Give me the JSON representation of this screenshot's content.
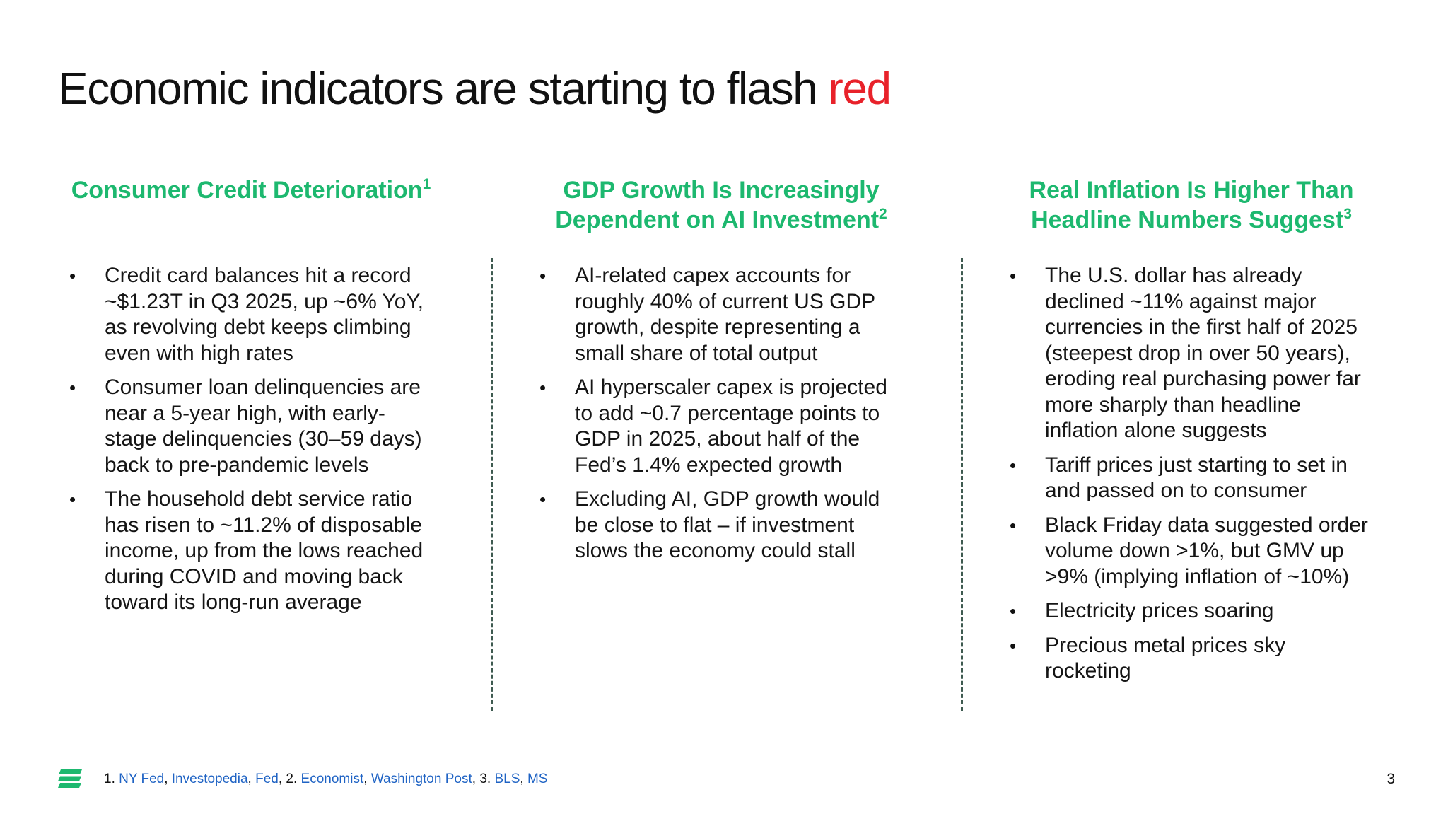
{
  "title": {
    "main": "Economic indicators are starting to flash ",
    "accent": "red"
  },
  "columns": [
    {
      "heading": "Consumer Credit Deterioration",
      "footnote": "1",
      "bullets": [
        "Credit card balances hit a record ~$1.23T in Q3 2025, up ~6% YoY, as revolving debt keeps climbing even with high rates",
        "Consumer loan delinquencies are near a 5-year high, with early-stage delinquencies (30–59 days) back to pre-pandemic levels",
        "The household debt service ratio has risen to ~11.2% of disposable income, up from the lows reached during COVID and moving back toward its long-run average"
      ]
    },
    {
      "heading": "GDP Growth Is Increasingly Dependent on AI Investment",
      "footnote": "2",
      "bullets": [
        "AI-related capex accounts for roughly 40% of current US GDP growth, despite representing a small share of total output",
        "AI hyperscaler capex is projected to add ~0.7 percentage points to GDP in 2025, about half of the Fed’s 1.4% expected growth",
        "Excluding AI, GDP growth would be close to flat – if investment slows the economy could stall"
      ]
    },
    {
      "heading": "Real Inflation Is Higher Than Headline Numbers Suggest",
      "footnote": "3",
      "bullets": [
        "The U.S. dollar has already declined ~11% against major currencies in the first half of 2025 (steepest drop in over 50 years), eroding real purchasing power far more sharply than headline inflation alone suggests",
        "Tariff prices just starting to set in and passed on to consumer",
        "Black Friday data suggested order volume down >1%, but GMV up >9% (implying inflation of ~10%)",
        "Electricity prices soaring",
        "Precious metal prices sky rocketing"
      ]
    }
  ],
  "bullet_glyph": "•",
  "footnotes": {
    "n1": "1.",
    "n2": "2.",
    "n3": "3.",
    "links": {
      "ny_fed": "NY Fed",
      "investopedia": "Investopedia",
      "fed": "Fed",
      "economist": "Economist",
      "washington_post": "Washington Post",
      "bls": "BLS",
      "ms": "MS"
    }
  },
  "page_number": "3",
  "colors": {
    "accent_red": "#e8222a",
    "heading_green": "#1db86f",
    "link_blue": "#1f63c4",
    "logo_green": "#1db86f"
  },
  "logo_icon": "brand-logo-icon"
}
